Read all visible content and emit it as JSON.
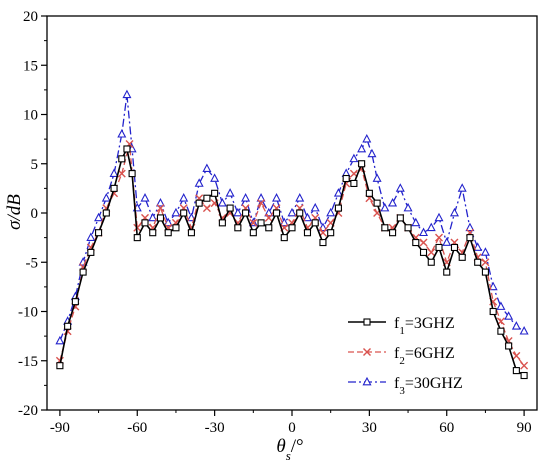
{
  "chart_data": {
    "type": "line",
    "xlabel": {
      "main": "θ",
      "sub": "s",
      "tail": "/°"
    },
    "ylabel": "σ/dB",
    "xlim": [
      -95,
      95
    ],
    "ylim": [
      -20,
      20
    ],
    "xticks": [
      -90,
      -60,
      -30,
      0,
      30,
      60,
      90
    ],
    "yticks": [
      -20,
      -15,
      -10,
      -5,
      0,
      5,
      10,
      15,
      20
    ],
    "xtick_labels": [
      "-90",
      "-60",
      "-30",
      "0",
      "30",
      "60",
      "90"
    ],
    "ytick_labels": [
      "-20",
      "-15",
      "-10",
      "-5",
      "0",
      "5",
      "10",
      "15",
      "20"
    ],
    "legend_position": "lower-right",
    "series": [
      {
        "name_base": "f",
        "name_sub": "1",
        "name_tail": "=3GHZ",
        "color": "#000000",
        "marker": "square",
        "dash": "solid",
        "x": [
          -90,
          -87,
          -84,
          -81,
          -78,
          -75,
          -72,
          -69,
          -66,
          -64,
          -62,
          -60,
          -57,
          -54,
          -51,
          -48,
          -45,
          -42,
          -39,
          -36,
          -33,
          -30,
          -27,
          -24,
          -21,
          -18,
          -15,
          -12,
          -9,
          -6,
          -3,
          0,
          3,
          6,
          9,
          12,
          15,
          18,
          21,
          24,
          27,
          30,
          33,
          36,
          39,
          42,
          45,
          48,
          51,
          54,
          57,
          60,
          63,
          66,
          69,
          72,
          75,
          78,
          81,
          84,
          87,
          90
        ],
        "y": [
          -15.5,
          -11.5,
          -9.0,
          -6.0,
          -4.0,
          -2.0,
          0.0,
          2.5,
          5.5,
          6.5,
          4.0,
          -2.5,
          -1.0,
          -2.0,
          -0.5,
          -2.0,
          -1.5,
          0.0,
          -2.0,
          1.0,
          1.5,
          2.0,
          -1.0,
          0.5,
          -1.5,
          0.0,
          -2.0,
          -1.0,
          -1.5,
          0.0,
          -2.5,
          -1.5,
          0.0,
          -2.0,
          -1.0,
          -3.0,
          -2.0,
          0.5,
          3.5,
          3.0,
          5.0,
          2.0,
          1.0,
          -1.5,
          -2.0,
          -0.5,
          -1.5,
          -3.0,
          -4.0,
          -5.0,
          -3.5,
          -6.0,
          -3.5,
          -4.5,
          -2.5,
          -5.0,
          -6.0,
          -10.0,
          -12.0,
          -13.5,
          -16.0,
          -16.5
        ]
      },
      {
        "name_base": "f",
        "name_sub": "2",
        "name_tail": "=6GHZ",
        "color": "#d9534f",
        "marker": "x",
        "dash": "dashed",
        "x": [
          -90,
          -87,
          -84,
          -81,
          -78,
          -75,
          -72,
          -69,
          -66,
          -63,
          -60,
          -57,
          -54,
          -51,
          -48,
          -45,
          -42,
          -39,
          -36,
          -33,
          -30,
          -27,
          -24,
          -21,
          -18,
          -15,
          -12,
          -9,
          -6,
          -3,
          0,
          3,
          6,
          9,
          12,
          15,
          18,
          21,
          24,
          27,
          30,
          33,
          36,
          39,
          42,
          45,
          48,
          51,
          54,
          57,
          60,
          63,
          66,
          69,
          72,
          75,
          78,
          81,
          84,
          87,
          90
        ],
        "y": [
          -15.0,
          -12.0,
          -9.5,
          -5.5,
          -3.5,
          -2.0,
          0.5,
          2.0,
          4.0,
          7.0,
          -1.5,
          -0.5,
          -1.5,
          0.5,
          -1.5,
          -1.0,
          0.5,
          -1.5,
          1.5,
          0.5,
          1.0,
          -0.5,
          0.0,
          -1.0,
          0.5,
          -1.0,
          1.0,
          -0.5,
          0.5,
          -1.5,
          -1.0,
          0.5,
          -1.5,
          -0.5,
          -2.0,
          -1.0,
          0.0,
          3.0,
          4.0,
          4.5,
          1.5,
          0.0,
          -1.5,
          -1.5,
          -0.5,
          -1.5,
          -2.5,
          -3.0,
          -4.0,
          -2.5,
          -5.0,
          -3.0,
          -4.0,
          -2.0,
          -4.5,
          -5.0,
          -9.0,
          -11.0,
          -13.0,
          -14.5,
          -15.5
        ]
      },
      {
        "name_base": "f",
        "name_sub": "3",
        "name_tail": "=30GHZ",
        "color": "#2323cc",
        "marker": "triangle",
        "dash": "dashdot",
        "x": [
          -90,
          -87,
          -84,
          -81,
          -78,
          -75,
          -72,
          -69,
          -66,
          -64,
          -62,
          -60,
          -57,
          -54,
          -51,
          -48,
          -45,
          -42,
          -39,
          -36,
          -33,
          -30,
          -27,
          -24,
          -21,
          -18,
          -15,
          -12,
          -9,
          -6,
          -3,
          0,
          3,
          6,
          9,
          12,
          15,
          18,
          21,
          24,
          27,
          29,
          31,
          33,
          36,
          39,
          42,
          45,
          48,
          51,
          54,
          57,
          60,
          63,
          66,
          69,
          72,
          75,
          78,
          81,
          84,
          87,
          90
        ],
        "y": [
          -13.0,
          -11.0,
          -8.5,
          -5.0,
          -2.5,
          -0.5,
          1.5,
          4.0,
          8.0,
          12.0,
          6.5,
          0.5,
          1.5,
          -0.5,
          1.0,
          -1.0,
          0.0,
          1.5,
          -0.5,
          3.0,
          4.5,
          3.5,
          1.0,
          2.0,
          0.0,
          1.5,
          -1.0,
          1.5,
          0.0,
          1.5,
          -1.0,
          0.0,
          1.5,
          -0.5,
          0.5,
          -1.5,
          0.0,
          2.0,
          4.0,
          5.5,
          6.5,
          7.5,
          6.0,
          3.5,
          0.5,
          1.0,
          2.5,
          0.5,
          -1.0,
          -2.0,
          -1.5,
          -0.5,
          -3.0,
          0.0,
          2.5,
          -1.5,
          -3.5,
          -4.0,
          -7.5,
          -9.5,
          -10.5,
          -11.5,
          -12.0
        ]
      }
    ]
  }
}
